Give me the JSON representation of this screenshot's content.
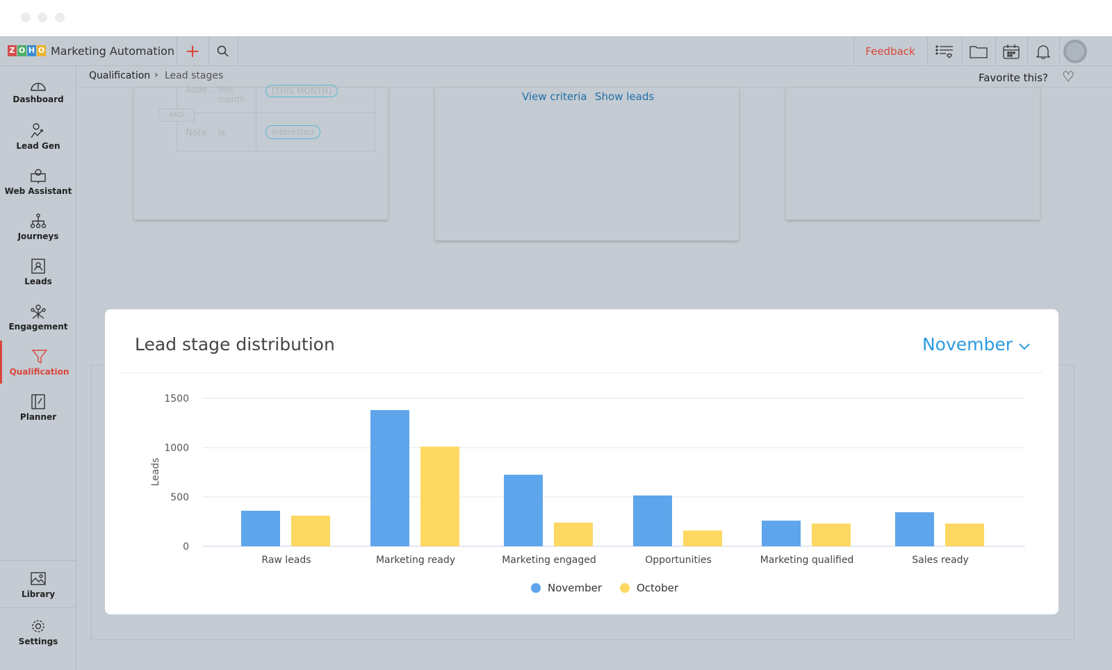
{
  "app": {
    "logo": "ZOHO",
    "title": "Marketing Automation"
  },
  "topbar": {
    "feedback": "Feedback",
    "icons": [
      "plus-icon",
      "search-icon",
      "list-heart-icon",
      "folder-icon",
      "calendar-icon",
      "bell-icon",
      "avatar"
    ]
  },
  "breadcrumb": {
    "parent": "Qualification",
    "current": "Lead stages",
    "favorite": "Favorite this?"
  },
  "sidebar": {
    "items": [
      {
        "label": "Dashboard"
      },
      {
        "label": "Lead Gen"
      },
      {
        "label": "Web Assistant"
      },
      {
        "label": "Journeys"
      },
      {
        "label": "Leads"
      },
      {
        "label": "Engagement"
      },
      {
        "label": "Qualification",
        "active": true
      },
      {
        "label": "Planner"
      }
    ],
    "bottom": [
      {
        "label": "Library"
      },
      {
        "label": "Settings"
      }
    ]
  },
  "bgcard1": {
    "row1_field": "Adde...",
    "row1_op": "this month",
    "row1_val": "[THIS MONTH]",
    "and": "AND",
    "row2_field": "Note",
    "row2_op": "is",
    "row2_val": "interested"
  },
  "bgcard2": {
    "view_criteria": "View criteria",
    "show_leads": "Show leads"
  },
  "modal": {
    "title": "Lead stage distribution",
    "selected_month": "November"
  },
  "colors": {
    "november": "#5fa5eb",
    "october": "#fdd862",
    "accent": "#d9463b",
    "link": "#2a9ae0"
  },
  "chart_data": {
    "type": "bar",
    "title": "",
    "xlabel": "",
    "ylabel": "Leads",
    "ylim": [
      0,
      1500
    ],
    "yticks": [
      0,
      500,
      1000,
      1500
    ],
    "grid": true,
    "legend": "bottom",
    "categories": [
      "Raw leads",
      "Marketing ready",
      "Marketing engaged",
      "Opportunities",
      "Marketing qualified",
      "Sales ready"
    ],
    "series": [
      {
        "name": "November",
        "values": [
          360,
          1380,
          725,
          515,
          260,
          345
        ]
      },
      {
        "name": "October",
        "values": [
          310,
          1010,
          240,
          160,
          230,
          230
        ]
      }
    ]
  }
}
